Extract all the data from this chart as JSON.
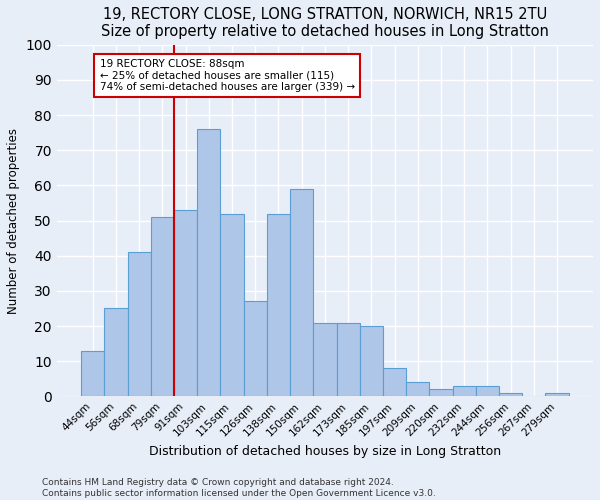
{
  "title1": "19, RECTORY CLOSE, LONG STRATTON, NORWICH, NR15 2TU",
  "title2": "Size of property relative to detached houses in Long Stratton",
  "xlabel": "Distribution of detached houses by size in Long Stratton",
  "ylabel": "Number of detached properties",
  "footer1": "Contains HM Land Registry data © Crown copyright and database right 2024.",
  "footer2": "Contains public sector information licensed under the Open Government Licence v3.0.",
  "bar_labels": [
    "44sqm",
    "56sqm",
    "68sqm",
    "79sqm",
    "91sqm",
    "103sqm",
    "115sqm",
    "126sqm",
    "138sqm",
    "150sqm",
    "162sqm",
    "173sqm",
    "185sqm",
    "197sqm",
    "209sqm",
    "220sqm",
    "232sqm",
    "244sqm",
    "256sqm",
    "267sqm",
    "279sqm"
  ],
  "bar_values": [
    13,
    25,
    41,
    51,
    53,
    76,
    52,
    27,
    52,
    59,
    21,
    21,
    20,
    8,
    4,
    2,
    3,
    3,
    1,
    0,
    1
  ],
  "bar_color": "#aec6e8",
  "bar_edgecolor": "#5a9fd4",
  "vline_color": "#cc0000",
  "annotation_text": "19 RECTORY CLOSE: 88sqm\n← 25% of detached houses are smaller (115)\n74% of semi-detached houses are larger (339) →",
  "annotation_box_color": "white",
  "annotation_box_edgecolor": "#cc0000",
  "ylim": [
    0,
    100
  ],
  "bg_color": "#e8eef8",
  "grid_color": "#ffffff",
  "title1_fontsize": 10.5,
  "title2_fontsize": 9.5,
  "xlabel_fontsize": 9,
  "ylabel_fontsize": 8.5,
  "annot_fontsize": 7.5,
  "footer_fontsize": 6.5
}
